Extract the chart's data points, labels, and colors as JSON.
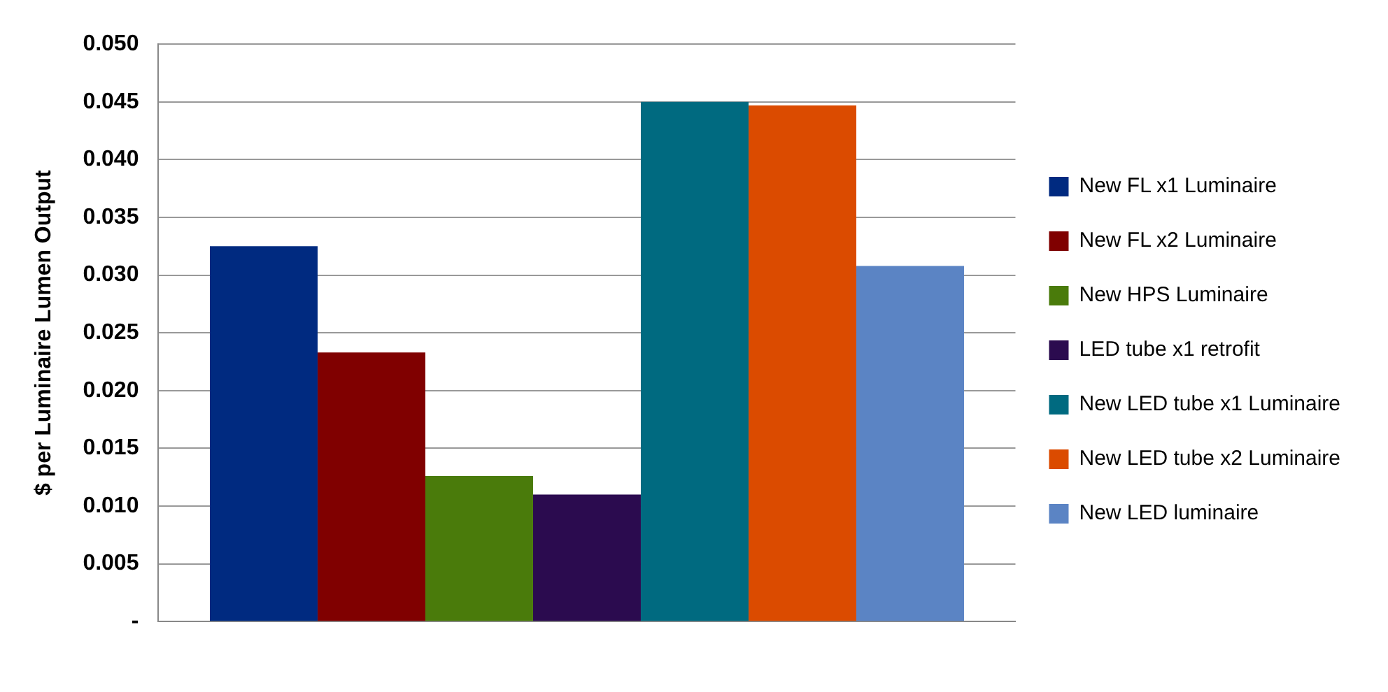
{
  "chart_data": {
    "type": "bar",
    "ylabel": "$ per Luminaire Lumen Output",
    "categories": [
      null
    ],
    "series": [
      {
        "name": "New FL x1 Luminaire",
        "color": "#002a80",
        "values": [
          0.0325
        ]
      },
      {
        "name": "New FL x2 Luminaire",
        "color": "#800000",
        "values": [
          0.0233
        ]
      },
      {
        "name": "New HPS Luminaire",
        "color": "#4a7b0b",
        "values": [
          0.0126
        ]
      },
      {
        "name": "LED tube x1 retrofit",
        "color": "#2b0b4f",
        "values": [
          0.011
        ]
      },
      {
        "name": "New LED tube x1 Luminaire",
        "color": "#006a80",
        "values": [
          0.045
        ]
      },
      {
        "name": "New LED tube x2 Luminaire",
        "color": "#db4b00",
        "values": [
          0.0447
        ]
      },
      {
        "name": "New LED luminaire",
        "color": "#5b84c4",
        "values": [
          0.0308
        ]
      }
    ],
    "ylim": [
      0,
      0.05
    ],
    "yticks": [
      {
        "value": 0,
        "label": "-"
      },
      {
        "value": 0.005,
        "label": "0.005"
      },
      {
        "value": 0.01,
        "label": "0.010"
      },
      {
        "value": 0.015,
        "label": "0.015"
      },
      {
        "value": 0.02,
        "label": "0.020"
      },
      {
        "value": 0.025,
        "label": "0.025"
      },
      {
        "value": 0.03,
        "label": "0.030"
      },
      {
        "value": 0.035,
        "label": "0.035"
      },
      {
        "value": 0.04,
        "label": "0.040"
      },
      {
        "value": 0.045,
        "label": "0.045"
      },
      {
        "value": 0.05,
        "label": "0.050"
      }
    ],
    "grid": "y",
    "legend": "right"
  }
}
